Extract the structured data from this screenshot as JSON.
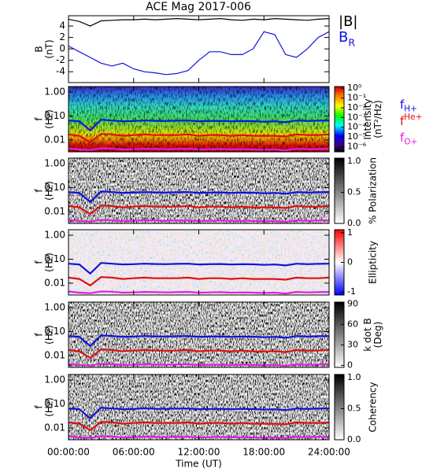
{
  "chart_data": [
    {
      "type": "line",
      "title": "ACE Mag 2017-006",
      "ylabel": [
        "B",
        "(nT)"
      ],
      "x": [
        0,
        1,
        2,
        3,
        4,
        5,
        6,
        7,
        8,
        9,
        10,
        11,
        12,
        13,
        14,
        15,
        16,
        17,
        18,
        19,
        20,
        21,
        22,
        23,
        24
      ],
      "xlim": [
        0,
        24
      ],
      "ylim": [
        -5.9,
        5.8
      ],
      "yticks": [
        -4,
        -2,
        0,
        2,
        4
      ],
      "series": [
        {
          "name": "|B|",
          "color": "#000000",
          "values": [
            5.2,
            4.8,
            4.0,
            4.9,
            5.0,
            5.1,
            5.1,
            5.2,
            5.1,
            5.2,
            5.3,
            5.2,
            5.1,
            5.2,
            5.3,
            5.1,
            5.0,
            5.2,
            5.1,
            5.3,
            5.2,
            5.1,
            5.0,
            5.2,
            5.3
          ]
        },
        {
          "name": "B",
          "name_sub": "R",
          "color": "#1010e0",
          "values": [
            0.5,
            -0.5,
            -1.5,
            -2.5,
            -3,
            -2.5,
            -3.5,
            -4,
            -4.2,
            -4.5,
            -4.3,
            -3.8,
            -2,
            -0.5,
            -0.5,
            -1,
            -1,
            0,
            3,
            2.5,
            -1,
            -1.5,
            0,
            2,
            3
          ]
        }
      ]
    },
    {
      "type": "spectrogram",
      "ylabel": [
        "f",
        "(Hz)"
      ],
      "ylim": [
        0.0032,
        1.7
      ],
      "log": true,
      "yticks": [
        {
          "value": 1,
          "label": "1.00"
        },
        {
          "value": 0.1,
          "label": "0.10"
        },
        {
          "value": 0.01,
          "label": "0.01"
        }
      ],
      "x": [
        0,
        1,
        2,
        3,
        4,
        5,
        6,
        7,
        8,
        9,
        10,
        11,
        12,
        13,
        14,
        15,
        16,
        17,
        18,
        19,
        20,
        21,
        22,
        23,
        24
      ],
      "series": [
        {
          "name": "f",
          "name_sub": "H+",
          "color": "#1010e0",
          "values": [
            0.065,
            0.06,
            0.025,
            0.07,
            0.065,
            0.06,
            0.062,
            0.065,
            0.063,
            0.062,
            0.064,
            0.065,
            0.06,
            0.062,
            0.063,
            0.06,
            0.062,
            0.061,
            0.058,
            0.06,
            0.055,
            0.065,
            0.062,
            0.064,
            0.065
          ]
        },
        {
          "name": "f",
          "name_sup": "He+",
          "color": "#e01010",
          "values": [
            0.017,
            0.015,
            0.008,
            0.018,
            0.017,
            0.015,
            0.016,
            0.017,
            0.016,
            0.016,
            0.016,
            0.017,
            0.015,
            0.016,
            0.016,
            0.015,
            0.016,
            0.015,
            0.015,
            0.015,
            0.014,
            0.017,
            0.016,
            0.016,
            0.017
          ]
        },
        {
          "name": "f",
          "name_sub": "O+",
          "color": "#e020e0",
          "values": [
            0.0045,
            0.004,
            0.0038,
            0.0045,
            0.0044,
            0.004,
            0.0041,
            0.0043,
            0.0042,
            0.0041,
            0.0042,
            0.0043,
            0.004,
            0.0041,
            0.0042,
            0.004,
            0.0041,
            0.004,
            0.0039,
            0.004,
            0.0037,
            0.0043,
            0.0041,
            0.0042,
            0.0043
          ]
        }
      ],
      "colorbar": {
        "label": [
          "Intensity",
          "(nT²/Hz)"
        ],
        "log": true,
        "lim": [
          3e-07,
          1.5
        ],
        "ticks": [
          {
            "value": 1,
            "label": "10⁰"
          },
          {
            "value": 0.1,
            "label": "10⁻¹"
          },
          {
            "value": 0.01,
            "label": "10⁻²"
          },
          {
            "value": 0.001,
            "label": "10⁻³"
          },
          {
            "value": 0.0001,
            "label": "10⁻⁴"
          },
          {
            "value": 1e-05,
            "label": "10⁻⁵"
          },
          {
            "value": 1e-06,
            "label": "10⁻⁶"
          }
        ]
      }
    },
    {
      "type": "spectrogram",
      "ylabel": [
        "f",
        "(Hz)"
      ],
      "ylim": [
        0.0032,
        1.7
      ],
      "log": true,
      "yticks": [
        {
          "value": 1,
          "label": "1.00"
        },
        {
          "value": 0.1,
          "label": "0.10"
        },
        {
          "value": 0.01,
          "label": "0.01"
        }
      ],
      "colorbar": {
        "label": [
          "% Polarization"
        ],
        "lim": [
          0,
          1.05
        ],
        "ticks": [
          {
            "value": 0,
            "label": "0.0"
          },
          0.5,
          {
            "value": 1,
            "label": "1.0"
          }
        ]
      }
    },
    {
      "type": "spectrogram",
      "ylabel": [
        "f",
        "(Hz)"
      ],
      "ylim": [
        0.0032,
        1.7
      ],
      "log": true,
      "yticks": [
        {
          "value": 1,
          "label": "1.00"
        },
        {
          "value": 0.1,
          "label": "0.10"
        },
        {
          "value": 0.01,
          "label": "0.01"
        }
      ],
      "colorbar": {
        "label": [
          "Ellipticity"
        ],
        "lim": [
          -1.1,
          1.1
        ],
        "ticks": [
          -1,
          0,
          1
        ]
      }
    },
    {
      "type": "spectrogram",
      "ylabel": [
        "f",
        "(Hz)"
      ],
      "ylim": [
        0.0032,
        1.7
      ],
      "log": true,
      "yticks": [
        {
          "value": 1,
          "label": "1.00"
        },
        {
          "value": 0.1,
          "label": "0.10"
        },
        {
          "value": 0.01,
          "label": "0.01"
        }
      ],
      "colorbar": {
        "label": [
          "k dot B",
          "(Deg)"
        ],
        "lim": [
          -3,
          93
        ],
        "ticks": [
          0,
          30,
          60,
          90
        ]
      }
    },
    {
      "type": "spectrogram",
      "ylabel": [
        "f",
        "(Hz)"
      ],
      "ylim": [
        0.0032,
        1.7
      ],
      "log": true,
      "yticks": [
        {
          "value": 1,
          "label": "1.00"
        },
        {
          "value": 0.1,
          "label": "0.10"
        },
        {
          "value": 0.01,
          "label": "0.01"
        }
      ],
      "colorbar": {
        "label": [
          "Coherency"
        ],
        "lim": [
          0,
          1.05
        ],
        "ticks": [
          {
            "value": 0,
            "label": "0.0"
          },
          0.5,
          {
            "value": 1,
            "label": "1.0"
          }
        ]
      },
      "xlabel": "Time (UT)",
      "xlim": [
        0,
        24
      ],
      "xticks": [
        {
          "value": 0,
          "label": "00:00:00"
        },
        {
          "value": 6,
          "label": "06:00:00"
        },
        {
          "value": 12,
          "label": "12:00:00"
        },
        {
          "value": 18,
          "label": "18:00:00"
        },
        {
          "value": 24,
          "label": "24:00:00"
        }
      ]
    }
  ]
}
